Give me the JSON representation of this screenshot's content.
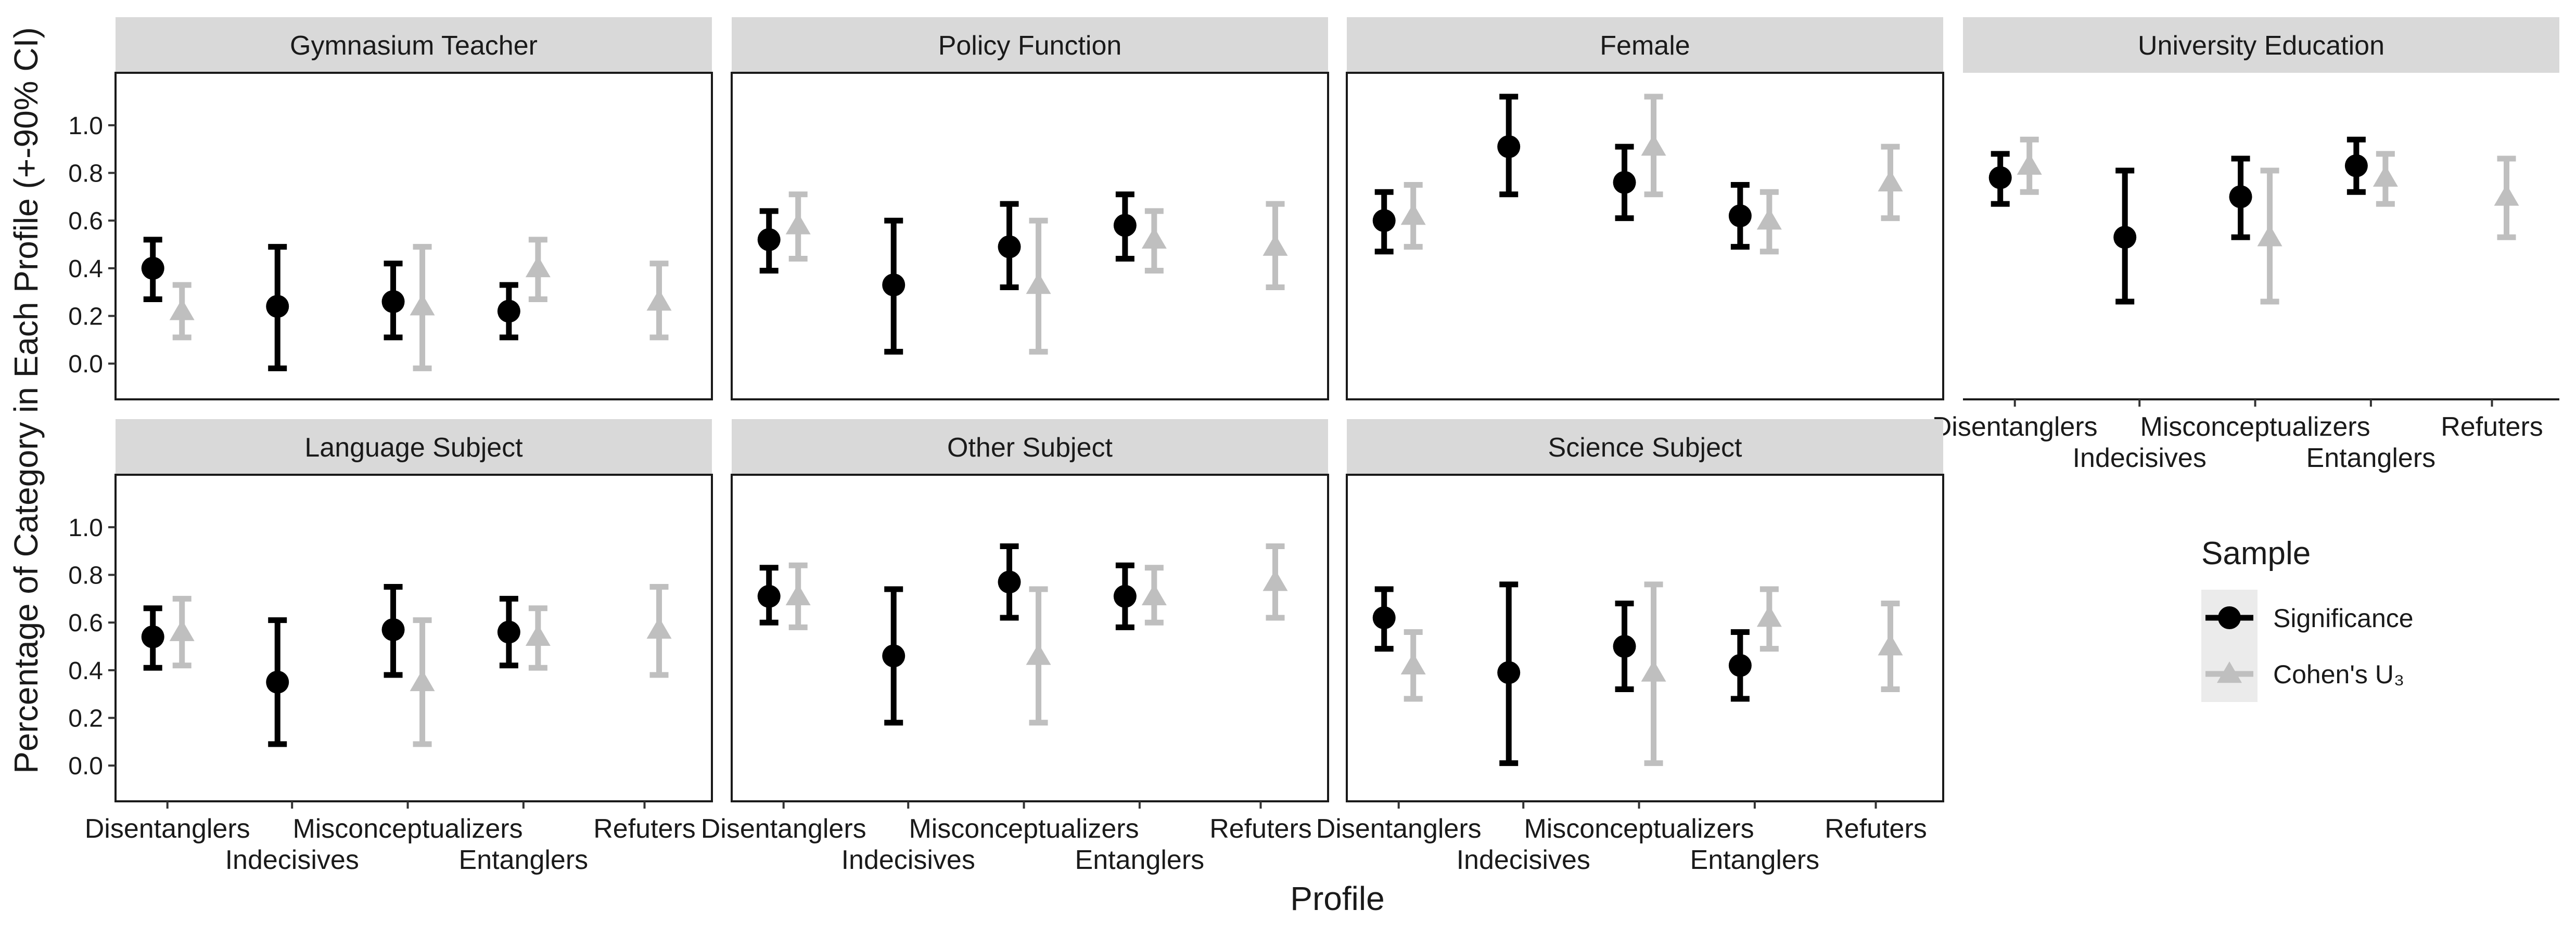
{
  "chart_data": {
    "type": "scatter",
    "layout": "faceted dot-and-errorbar plot (facet_wrap, 4 columns)",
    "ylabel": "Percentage of Category in Each Profile (+-90% CI)",
    "xlabel": "Profile",
    "categories": [
      "Disentanglers",
      "Indecisives",
      "Misconceptualizers",
      "Entanglers",
      "Refuters"
    ],
    "y_ticks": [
      "0.0",
      "0.2",
      "0.4",
      "0.6",
      "0.8",
      "1.0"
    ],
    "ylim": [
      -0.15,
      1.22
    ],
    "grid": false,
    "legend": {
      "title": "Sample",
      "placement": "right",
      "entries": [
        {
          "name": "Significance",
          "color": "#000000",
          "marker": "circle"
        },
        {
          "name": "Cohen's U₃",
          "color": "#bfbfbf",
          "marker": "triangle"
        }
      ]
    },
    "facets": [
      {
        "title": "Gymnasium Teacher",
        "series": [
          {
            "name": "Significance",
            "points": [
              {
                "x": "Disentanglers",
                "y": 0.4,
                "lo": 0.27,
                "hi": 0.52
              },
              {
                "x": "Indecisives",
                "y": 0.24,
                "lo": -0.02,
                "hi": 0.49
              },
              {
                "x": "Misconceptualizers",
                "y": 0.26,
                "lo": 0.11,
                "hi": 0.42
              },
              {
                "x": "Entanglers",
                "y": 0.22,
                "lo": 0.11,
                "hi": 0.33
              }
            ]
          },
          {
            "name": "Cohen's U₃",
            "points": [
              {
                "x": "Disentanglers",
                "y": 0.22,
                "lo": 0.11,
                "hi": 0.33
              },
              {
                "x": "Misconceptualizers",
                "y": 0.24,
                "lo": -0.02,
                "hi": 0.49
              },
              {
                "x": "Entanglers",
                "y": 0.4,
                "lo": 0.27,
                "hi": 0.52
              },
              {
                "x": "Refuters",
                "y": 0.26,
                "lo": 0.11,
                "hi": 0.42
              }
            ]
          }
        ]
      },
      {
        "title": "Policy Function",
        "series": [
          {
            "name": "Significance",
            "points": [
              {
                "x": "Disentanglers",
                "y": 0.52,
                "lo": 0.39,
                "hi": 0.64
              },
              {
                "x": "Indecisives",
                "y": 0.33,
                "lo": 0.05,
                "hi": 0.6
              },
              {
                "x": "Misconceptualizers",
                "y": 0.49,
                "lo": 0.32,
                "hi": 0.67
              },
              {
                "x": "Entanglers",
                "y": 0.58,
                "lo": 0.44,
                "hi": 0.71
              }
            ]
          },
          {
            "name": "Cohen's U₃",
            "points": [
              {
                "x": "Disentanglers",
                "y": 0.58,
                "lo": 0.44,
                "hi": 0.71
              },
              {
                "x": "Misconceptualizers",
                "y": 0.33,
                "lo": 0.05,
                "hi": 0.6
              },
              {
                "x": "Entanglers",
                "y": 0.52,
                "lo": 0.39,
                "hi": 0.64
              },
              {
                "x": "Refuters",
                "y": 0.49,
                "lo": 0.32,
                "hi": 0.67
              }
            ]
          }
        ]
      },
      {
        "title": "Female",
        "series": [
          {
            "name": "Significance",
            "points": [
              {
                "x": "Disentanglers",
                "y": 0.6,
                "lo": 0.47,
                "hi": 0.72
              },
              {
                "x": "Indecisives",
                "y": 0.91,
                "lo": 0.71,
                "hi": 1.12
              },
              {
                "x": "Misconceptualizers",
                "y": 0.76,
                "lo": 0.61,
                "hi": 0.91
              },
              {
                "x": "Entanglers",
                "y": 0.62,
                "lo": 0.49,
                "hi": 0.75
              }
            ]
          },
          {
            "name": "Cohen's U₃",
            "points": [
              {
                "x": "Disentanglers",
                "y": 0.62,
                "lo": 0.49,
                "hi": 0.75
              },
              {
                "x": "Misconceptualizers",
                "y": 0.91,
                "lo": 0.71,
                "hi": 1.12
              },
              {
                "x": "Entanglers",
                "y": 0.6,
                "lo": 0.47,
                "hi": 0.72
              },
              {
                "x": "Refuters",
                "y": 0.76,
                "lo": 0.61,
                "hi": 0.91
              }
            ]
          }
        ]
      },
      {
        "title": "University Education",
        "series": [
          {
            "name": "Significance",
            "points": [
              {
                "x": "Disentanglers",
                "y": 0.78,
                "lo": 0.67,
                "hi": 0.88
              },
              {
                "x": "Indecisives",
                "y": 0.53,
                "lo": 0.26,
                "hi": 0.81
              },
              {
                "x": "Misconceptualizers",
                "y": 0.7,
                "lo": 0.53,
                "hi": 0.86
              },
              {
                "x": "Entanglers",
                "y": 0.83,
                "lo": 0.72,
                "hi": 0.94
              }
            ]
          },
          {
            "name": "Cohen's U₃",
            "points": [
              {
                "x": "Disentanglers",
                "y": 0.83,
                "lo": 0.72,
                "hi": 0.94
              },
              {
                "x": "Misconceptualizers",
                "y": 0.53,
                "lo": 0.26,
                "hi": 0.81
              },
              {
                "x": "Entanglers",
                "y": 0.78,
                "lo": 0.67,
                "hi": 0.88
              },
              {
                "x": "Refuters",
                "y": 0.7,
                "lo": 0.53,
                "hi": 0.86
              }
            ]
          }
        ]
      },
      {
        "title": "Language Subject",
        "series": [
          {
            "name": "Significance",
            "points": [
              {
                "x": "Disentanglers",
                "y": 0.54,
                "lo": 0.41,
                "hi": 0.66
              },
              {
                "x": "Indecisives",
                "y": 0.35,
                "lo": 0.09,
                "hi": 0.61
              },
              {
                "x": "Misconceptualizers",
                "y": 0.57,
                "lo": 0.38,
                "hi": 0.75
              },
              {
                "x": "Entanglers",
                "y": 0.56,
                "lo": 0.42,
                "hi": 0.7
              }
            ]
          },
          {
            "name": "Cohen's U₃",
            "points": [
              {
                "x": "Disentanglers",
                "y": 0.56,
                "lo": 0.42,
                "hi": 0.7
              },
              {
                "x": "Misconceptualizers",
                "y": 0.35,
                "lo": 0.09,
                "hi": 0.61
              },
              {
                "x": "Entanglers",
                "y": 0.54,
                "lo": 0.41,
                "hi": 0.66
              },
              {
                "x": "Refuters",
                "y": 0.57,
                "lo": 0.38,
                "hi": 0.75
              }
            ]
          }
        ]
      },
      {
        "title": "Other Subject",
        "series": [
          {
            "name": "Significance",
            "points": [
              {
                "x": "Disentanglers",
                "y": 0.71,
                "lo": 0.6,
                "hi": 0.83
              },
              {
                "x": "Indecisives",
                "y": 0.46,
                "lo": 0.18,
                "hi": 0.74
              },
              {
                "x": "Misconceptualizers",
                "y": 0.77,
                "lo": 0.62,
                "hi": 0.92
              },
              {
                "x": "Entanglers",
                "y": 0.71,
                "lo": 0.58,
                "hi": 0.84
              }
            ]
          },
          {
            "name": "Cohen's U₃",
            "points": [
              {
                "x": "Disentanglers",
                "y": 0.71,
                "lo": 0.58,
                "hi": 0.84
              },
              {
                "x": "Misconceptualizers",
                "y": 0.46,
                "lo": 0.18,
                "hi": 0.74
              },
              {
                "x": "Entanglers",
                "y": 0.71,
                "lo": 0.6,
                "hi": 0.83
              },
              {
                "x": "Refuters",
                "y": 0.77,
                "lo": 0.62,
                "hi": 0.92
              }
            ]
          }
        ]
      },
      {
        "title": "Science Subject",
        "series": [
          {
            "name": "Significance",
            "points": [
              {
                "x": "Disentanglers",
                "y": 0.62,
                "lo": 0.49,
                "hi": 0.74
              },
              {
                "x": "Indecisives",
                "y": 0.39,
                "lo": 0.01,
                "hi": 0.76
              },
              {
                "x": "Misconceptualizers",
                "y": 0.5,
                "lo": 0.32,
                "hi": 0.68
              },
              {
                "x": "Entanglers",
                "y": 0.42,
                "lo": 0.28,
                "hi": 0.56
              }
            ]
          },
          {
            "name": "Cohen's U₃",
            "points": [
              {
                "x": "Disentanglers",
                "y": 0.42,
                "lo": 0.28,
                "hi": 0.56
              },
              {
                "x": "Misconceptualizers",
                "y": 0.39,
                "lo": 0.01,
                "hi": 0.76
              },
              {
                "x": "Entanglers",
                "y": 0.62,
                "lo": 0.49,
                "hi": 0.74
              },
              {
                "x": "Refuters",
                "y": 0.5,
                "lo": 0.32,
                "hi": 0.68
              }
            ]
          }
        ]
      }
    ]
  }
}
